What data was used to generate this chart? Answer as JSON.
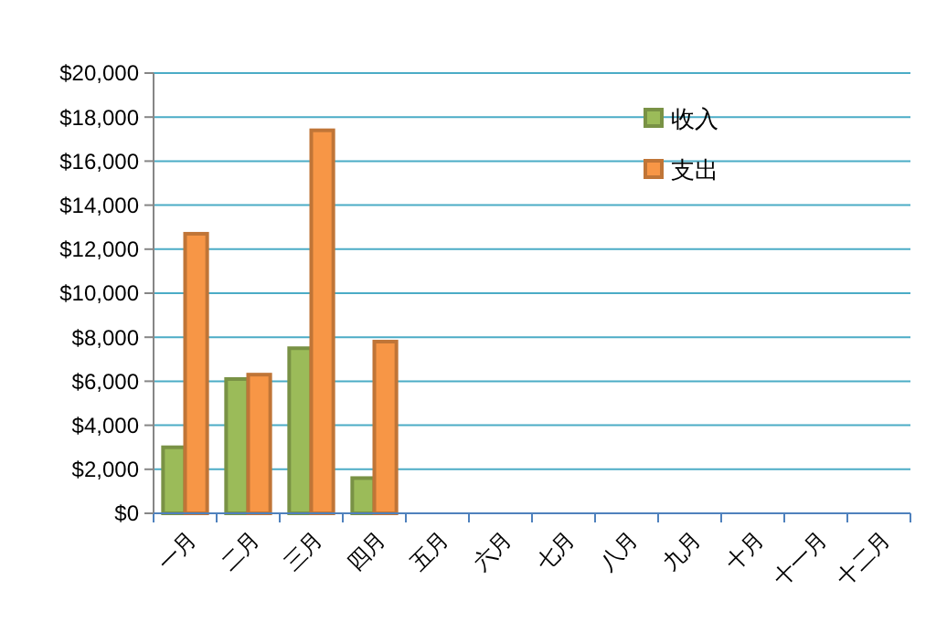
{
  "chart_data": {
    "type": "bar",
    "categories": [
      "一月",
      "二月",
      "三月",
      "四月",
      "五月",
      "六月",
      "七月",
      "八月",
      "九月",
      "十月",
      "十一月",
      "十二月"
    ],
    "series": [
      {
        "name": "收入",
        "color": "#9bbb59",
        "values": [
          3000,
          6100,
          7500,
          1600,
          null,
          null,
          null,
          null,
          null,
          null,
          null,
          null
        ]
      },
      {
        "name": "支出",
        "color": "#f79646",
        "values": [
          12700,
          6300,
          17400,
          7800,
          null,
          null,
          null,
          null,
          null,
          null,
          null,
          null
        ]
      }
    ],
    "ylim": [
      0,
      20000
    ],
    "yticks": [
      {
        "value": 0,
        "label": "$0"
      },
      {
        "value": 2000,
        "label": "$2,000"
      },
      {
        "value": 4000,
        "label": "$4,000"
      },
      {
        "value": 6000,
        "label": "$6,000"
      },
      {
        "value": 8000,
        "label": "$8,000"
      },
      {
        "value": 10000,
        "label": "$10,000"
      },
      {
        "value": 12000,
        "label": "$12,000"
      },
      {
        "value": 14000,
        "label": "$14,000"
      },
      {
        "value": 16000,
        "label": "$16,000"
      },
      {
        "value": 18000,
        "label": "$18,000"
      },
      {
        "value": 20000,
        "label": "$20,000"
      }
    ],
    "grid": "y",
    "legend": "top right"
  }
}
